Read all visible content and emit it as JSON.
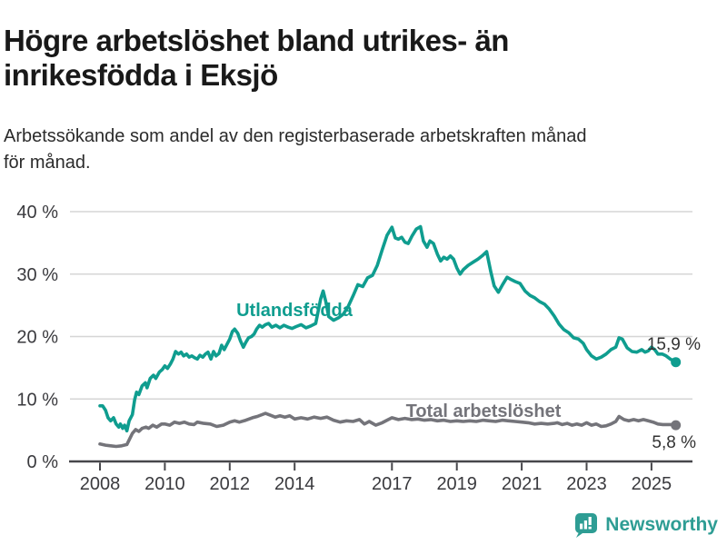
{
  "header": {
    "title_lines": [
      "Högre arbetslöshet bland utrikes- än",
      "inrikesfödda i Eksjö"
    ],
    "subtitle_lines": [
      "Arbetssökande som andel av den registerbaserade arbetskraften månad",
      "för månad."
    ]
  },
  "chart_data": {
    "type": "line",
    "title": "Högre arbetslöshet bland utrikes- än inrikesfödda i Eksjö",
    "subtitle": "Arbetssökande som andel av den registerbaserade arbetskraften månad för månad.",
    "unit": "%",
    "grid": true,
    "x_axis": {
      "ticks": [
        2008,
        2010,
        2012,
        2014,
        2017,
        2019,
        2021,
        2023,
        2025
      ],
      "range": [
        2007.5,
        2026.2
      ]
    },
    "y_axis": {
      "ticks": [
        0,
        10,
        20,
        30,
        40
      ],
      "tick_suffix": " %",
      "range": [
        0,
        40
      ]
    },
    "series": [
      {
        "name": "Utlandsfödda",
        "slug": "utlandsfodda",
        "color": "#0f9d8f",
        "end_label": "15,9 %",
        "end_value": 15.9,
        "points": [
          [
            2008.0,
            8.9
          ],
          [
            2008.08,
            8.9
          ],
          [
            2008.17,
            8.2
          ],
          [
            2008.25,
            7.0
          ],
          [
            2008.33,
            6.5
          ],
          [
            2008.42,
            7.0
          ],
          [
            2008.5,
            6.0
          ],
          [
            2008.58,
            5.5
          ],
          [
            2008.63,
            6.0
          ],
          [
            2008.7,
            5.3
          ],
          [
            2008.76,
            5.8
          ],
          [
            2008.83,
            4.9
          ],
          [
            2008.9,
            6.5
          ],
          [
            2009.0,
            7.5
          ],
          [
            2009.07,
            9.9
          ],
          [
            2009.13,
            11.1
          ],
          [
            2009.2,
            10.7
          ],
          [
            2009.3,
            12.1
          ],
          [
            2009.4,
            12.6
          ],
          [
            2009.45,
            11.8
          ],
          [
            2009.55,
            13.3
          ],
          [
            2009.65,
            13.8
          ],
          [
            2009.72,
            13.3
          ],
          [
            2009.83,
            14.3
          ],
          [
            2009.92,
            14.7
          ],
          [
            2010.0,
            15.3
          ],
          [
            2010.08,
            14.9
          ],
          [
            2010.17,
            15.6
          ],
          [
            2010.25,
            16.4
          ],
          [
            2010.33,
            17.6
          ],
          [
            2010.42,
            17.2
          ],
          [
            2010.5,
            17.5
          ],
          [
            2010.58,
            16.9
          ],
          [
            2010.67,
            17.2
          ],
          [
            2010.75,
            16.7
          ],
          [
            2010.83,
            16.9
          ],
          [
            2010.92,
            16.6
          ],
          [
            2011.0,
            16.4
          ],
          [
            2011.08,
            17.0
          ],
          [
            2011.17,
            16.7
          ],
          [
            2011.25,
            17.2
          ],
          [
            2011.33,
            17.5
          ],
          [
            2011.42,
            16.4
          ],
          [
            2011.5,
            17.6
          ],
          [
            2011.58,
            16.9
          ],
          [
            2011.67,
            17.3
          ],
          [
            2011.75,
            18.6
          ],
          [
            2011.83,
            17.9
          ],
          [
            2011.92,
            18.8
          ],
          [
            2012.0,
            19.6
          ],
          [
            2012.08,
            20.8
          ],
          [
            2012.15,
            21.2
          ],
          [
            2012.25,
            20.5
          ],
          [
            2012.33,
            19.3
          ],
          [
            2012.42,
            18.3
          ],
          [
            2012.5,
            19.1
          ],
          [
            2012.58,
            19.8
          ],
          [
            2012.67,
            20.0
          ],
          [
            2012.75,
            20.4
          ],
          [
            2012.83,
            21.2
          ],
          [
            2012.92,
            21.8
          ],
          [
            2013.0,
            21.5
          ],
          [
            2013.1,
            21.9
          ],
          [
            2013.2,
            22.1
          ],
          [
            2013.3,
            21.5
          ],
          [
            2013.42,
            21.8
          ],
          [
            2013.55,
            21.4
          ],
          [
            2013.67,
            21.8
          ],
          [
            2013.8,
            21.5
          ],
          [
            2013.92,
            21.3
          ],
          [
            2014.05,
            21.6
          ],
          [
            2014.2,
            21.9
          ],
          [
            2014.35,
            21.4
          ],
          [
            2014.5,
            21.7
          ],
          [
            2014.65,
            22.1
          ],
          [
            2014.8,
            26.0
          ],
          [
            2014.88,
            27.3
          ],
          [
            2014.96,
            25.6
          ],
          [
            2015.05,
            23.2
          ],
          [
            2015.2,
            22.6
          ],
          [
            2015.35,
            23.0
          ],
          [
            2015.5,
            23.6
          ],
          [
            2015.65,
            24.8
          ],
          [
            2015.8,
            26.5
          ],
          [
            2015.95,
            28.3
          ],
          [
            2016.1,
            28.0
          ],
          [
            2016.25,
            29.4
          ],
          [
            2016.4,
            29.8
          ],
          [
            2016.55,
            31.4
          ],
          [
            2016.7,
            33.9
          ],
          [
            2016.85,
            36.2
          ],
          [
            2017.0,
            37.5
          ],
          [
            2017.1,
            35.8
          ],
          [
            2017.2,
            35.6
          ],
          [
            2017.3,
            35.9
          ],
          [
            2017.4,
            35.1
          ],
          [
            2017.5,
            34.9
          ],
          [
            2017.62,
            36.1
          ],
          [
            2017.75,
            37.2
          ],
          [
            2017.88,
            37.6
          ],
          [
            2017.97,
            35.3
          ],
          [
            2018.08,
            34.3
          ],
          [
            2018.17,
            35.3
          ],
          [
            2018.28,
            34.9
          ],
          [
            2018.4,
            33.2
          ],
          [
            2018.5,
            32.1
          ],
          [
            2018.6,
            32.7
          ],
          [
            2018.7,
            32.4
          ],
          [
            2018.8,
            32.9
          ],
          [
            2018.9,
            32.4
          ],
          [
            2019.0,
            31.0
          ],
          [
            2019.1,
            30.0
          ],
          [
            2019.2,
            30.7
          ],
          [
            2019.35,
            31.4
          ],
          [
            2019.5,
            31.9
          ],
          [
            2019.65,
            32.4
          ],
          [
            2019.8,
            33.0
          ],
          [
            2019.92,
            33.6
          ],
          [
            2020.05,
            30.3
          ],
          [
            2020.15,
            28.1
          ],
          [
            2020.28,
            27.1
          ],
          [
            2020.42,
            28.4
          ],
          [
            2020.55,
            29.5
          ],
          [
            2020.68,
            29.1
          ],
          [
            2020.8,
            28.8
          ],
          [
            2020.95,
            28.5
          ],
          [
            2021.1,
            27.3
          ],
          [
            2021.25,
            26.6
          ],
          [
            2021.4,
            26.2
          ],
          [
            2021.55,
            25.6
          ],
          [
            2021.7,
            25.2
          ],
          [
            2021.85,
            24.4
          ],
          [
            2022.0,
            23.3
          ],
          [
            2022.15,
            22.0
          ],
          [
            2022.3,
            21.1
          ],
          [
            2022.45,
            20.6
          ],
          [
            2022.6,
            19.8
          ],
          [
            2022.75,
            19.6
          ],
          [
            2022.9,
            18.9
          ],
          [
            2023.0,
            17.9
          ],
          [
            2023.15,
            16.9
          ],
          [
            2023.3,
            16.4
          ],
          [
            2023.45,
            16.7
          ],
          [
            2023.6,
            17.2
          ],
          [
            2023.75,
            17.9
          ],
          [
            2023.9,
            18.3
          ],
          [
            2024.0,
            19.8
          ],
          [
            2024.1,
            19.6
          ],
          [
            2024.25,
            18.2
          ],
          [
            2024.4,
            17.6
          ],
          [
            2024.55,
            17.5
          ],
          [
            2024.7,
            17.9
          ],
          [
            2024.8,
            17.5
          ],
          [
            2024.9,
            17.7
          ],
          [
            2025.0,
            18.3
          ],
          [
            2025.1,
            17.9
          ],
          [
            2025.2,
            17.2
          ],
          [
            2025.33,
            17.2
          ],
          [
            2025.45,
            16.9
          ],
          [
            2025.58,
            16.4
          ],
          [
            2025.75,
            15.9
          ]
        ]
      },
      {
        "name": "Total arbetslöshet",
        "slug": "total-arbetsloshet",
        "color": "#74747a",
        "end_label": "5,8 %",
        "end_value": 5.8,
        "points": [
          [
            2008.0,
            2.8
          ],
          [
            2008.17,
            2.6
          ],
          [
            2008.33,
            2.5
          ],
          [
            2008.5,
            2.4
          ],
          [
            2008.67,
            2.5
          ],
          [
            2008.83,
            2.7
          ],
          [
            2009.0,
            4.5
          ],
          [
            2009.1,
            5.1
          ],
          [
            2009.2,
            4.8
          ],
          [
            2009.3,
            5.3
          ],
          [
            2009.42,
            5.5
          ],
          [
            2009.5,
            5.3
          ],
          [
            2009.63,
            5.8
          ],
          [
            2009.75,
            5.5
          ],
          [
            2009.9,
            6.0
          ],
          [
            2010.0,
            6.0
          ],
          [
            2010.15,
            5.8
          ],
          [
            2010.3,
            6.3
          ],
          [
            2010.45,
            6.1
          ],
          [
            2010.6,
            6.3
          ],
          [
            2010.75,
            6.0
          ],
          [
            2010.9,
            5.9
          ],
          [
            2011.0,
            6.3
          ],
          [
            2011.2,
            6.1
          ],
          [
            2011.4,
            6.0
          ],
          [
            2011.6,
            5.6
          ],
          [
            2011.8,
            5.8
          ],
          [
            2012.0,
            6.3
          ],
          [
            2012.15,
            6.5
          ],
          [
            2012.3,
            6.3
          ],
          [
            2012.5,
            6.6
          ],
          [
            2012.7,
            7.0
          ],
          [
            2012.85,
            7.2
          ],
          [
            2013.1,
            7.7
          ],
          [
            2013.25,
            7.4
          ],
          [
            2013.4,
            7.1
          ],
          [
            2013.55,
            7.3
          ],
          [
            2013.7,
            7.1
          ],
          [
            2013.85,
            7.3
          ],
          [
            2014.0,
            6.8
          ],
          [
            2014.2,
            7.0
          ],
          [
            2014.4,
            6.8
          ],
          [
            2014.6,
            7.1
          ],
          [
            2014.8,
            6.9
          ],
          [
            2015.0,
            7.1
          ],
          [
            2015.2,
            6.6
          ],
          [
            2015.4,
            6.3
          ],
          [
            2015.6,
            6.5
          ],
          [
            2015.8,
            6.4
          ],
          [
            2016.0,
            6.7
          ],
          [
            2016.15,
            6.0
          ],
          [
            2016.3,
            6.4
          ],
          [
            2016.5,
            5.8
          ],
          [
            2016.7,
            6.2
          ],
          [
            2016.85,
            6.6
          ],
          [
            2017.0,
            7.0
          ],
          [
            2017.2,
            6.7
          ],
          [
            2017.4,
            6.9
          ],
          [
            2017.6,
            6.7
          ],
          [
            2017.8,
            6.8
          ],
          [
            2018.0,
            6.6
          ],
          [
            2018.2,
            6.7
          ],
          [
            2018.4,
            6.5
          ],
          [
            2018.6,
            6.6
          ],
          [
            2018.8,
            6.4
          ],
          [
            2019.0,
            6.5
          ],
          [
            2019.2,
            6.4
          ],
          [
            2019.4,
            6.5
          ],
          [
            2019.6,
            6.4
          ],
          [
            2019.8,
            6.6
          ],
          [
            2020.0,
            6.5
          ],
          [
            2020.2,
            6.4
          ],
          [
            2020.4,
            6.6
          ],
          [
            2020.6,
            6.5
          ],
          [
            2020.8,
            6.4
          ],
          [
            2021.0,
            6.3
          ],
          [
            2021.2,
            6.2
          ],
          [
            2021.4,
            6.0
          ],
          [
            2021.6,
            6.1
          ],
          [
            2021.8,
            6.0
          ],
          [
            2022.0,
            6.1
          ],
          [
            2022.1,
            6.2
          ],
          [
            2022.25,
            5.9
          ],
          [
            2022.4,
            6.1
          ],
          [
            2022.55,
            5.8
          ],
          [
            2022.7,
            6.0
          ],
          [
            2022.85,
            5.8
          ],
          [
            2023.0,
            6.2
          ],
          [
            2023.15,
            5.8
          ],
          [
            2023.3,
            6.0
          ],
          [
            2023.45,
            5.6
          ],
          [
            2023.6,
            5.7
          ],
          [
            2023.75,
            6.0
          ],
          [
            2023.9,
            6.4
          ],
          [
            2024.0,
            7.2
          ],
          [
            2024.15,
            6.7
          ],
          [
            2024.3,
            6.5
          ],
          [
            2024.45,
            6.7
          ],
          [
            2024.6,
            6.5
          ],
          [
            2024.75,
            6.7
          ],
          [
            2024.9,
            6.5
          ],
          [
            2025.05,
            6.3
          ],
          [
            2025.2,
            6.0
          ],
          [
            2025.35,
            5.9
          ],
          [
            2025.5,
            5.9
          ],
          [
            2025.65,
            5.9
          ],
          [
            2025.75,
            5.8
          ]
        ]
      }
    ]
  },
  "footer": {
    "brand": "Newsworthy",
    "brand_color": "#2e9d94"
  }
}
